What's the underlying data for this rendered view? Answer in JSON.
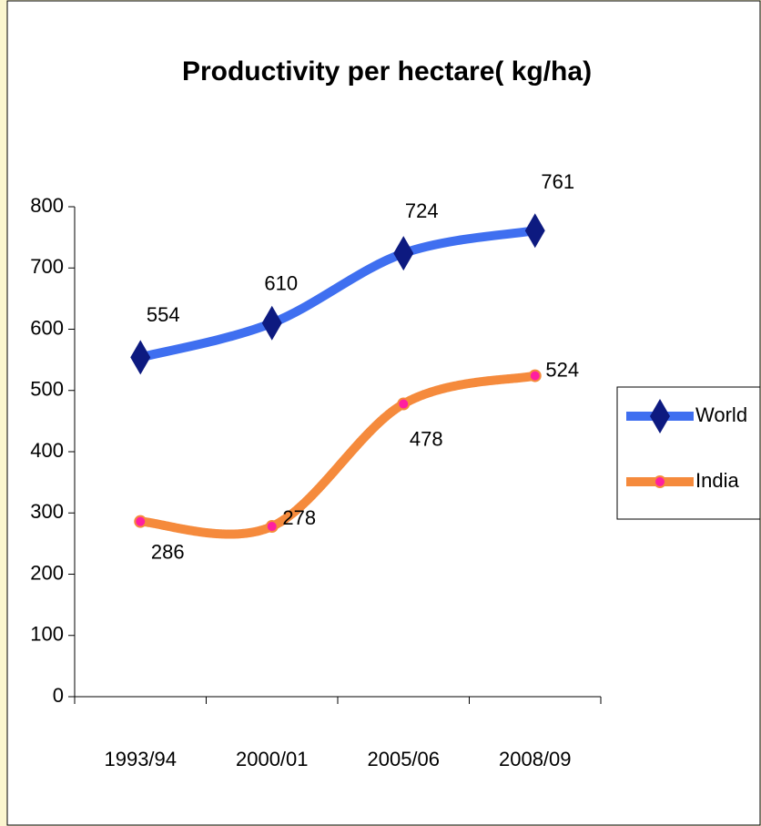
{
  "chart_data": {
    "type": "line",
    "title": "Productivity per hectare( kg/ha)",
    "categories": [
      "1993/94",
      "2000/01",
      "2005/06",
      "2008/09"
    ],
    "series": [
      {
        "name": "World",
        "color": "#3f6ff0",
        "marker_color": "#0d1a80",
        "marker": "diamond",
        "values": [
          554,
          610,
          724,
          761
        ]
      },
      {
        "name": "India",
        "color": "#f58a3c",
        "marker_color": "#ff1fa0",
        "marker": "circle",
        "values": [
          286,
          278,
          478,
          524
        ]
      }
    ],
    "ylim": [
      0,
      800
    ],
    "yticks": [
      0,
      100,
      200,
      300,
      400,
      500,
      600,
      700,
      800
    ],
    "legend": "right"
  }
}
